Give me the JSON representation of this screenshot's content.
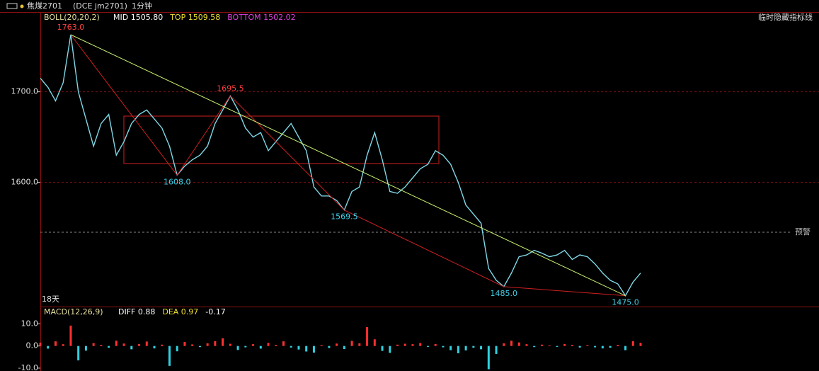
{
  "toolbar": {
    "symbol": "焦煤2701",
    "code": "(DCE jm2701)",
    "period": "1分钟"
  },
  "chart_data": [
    {
      "type": "line",
      "indicator": "BOLL(20,20,2)",
      "indicator_values": [
        "MID 1505.80",
        "TOP 1509.58",
        "BOTTOM 1502.02"
      ],
      "hide_button": "临时隐藏指标线",
      "alert_label": "预警",
      "alert_value": 1545,
      "span_label": "18天",
      "color": "#7fd8e6",
      "values": [
        1715,
        1705,
        1690,
        1710,
        1763,
        1700,
        1670,
        1640,
        1665,
        1675,
        1630,
        1645,
        1665,
        1675,
        1680,
        1670,
        1660,
        1640,
        1608,
        1618,
        1625,
        1630,
        1640,
        1665,
        1680,
        1695.5,
        1680,
        1660,
        1650,
        1655,
        1635,
        1645,
        1655,
        1665,
        1650,
        1635,
        1595,
        1585,
        1585,
        1580,
        1569.5,
        1590,
        1595,
        1630,
        1655,
        1625,
        1590,
        1588,
        1595,
        1605,
        1615,
        1620,
        1635,
        1630,
        1620,
        1600,
        1575,
        1565,
        1555,
        1505,
        1492,
        1485,
        1500,
        1518,
        1520,
        1525,
        1522,
        1518,
        1520,
        1525,
        1515,
        1520,
        1518,
        1510,
        1500,
        1492,
        1488,
        1475,
        1490,
        1500
      ],
      "value_labels": [
        null,
        null,
        null,
        null,
        "1763.0",
        null,
        null,
        null,
        null,
        null,
        null,
        null,
        null,
        null,
        null,
        null,
        null,
        null,
        "1608.0",
        null,
        null,
        null,
        null,
        null,
        null,
        "1695.5",
        null,
        null,
        null,
        null,
        null,
        null,
        null,
        null,
        null,
        null,
        null,
        null,
        null,
        null,
        "1569.5",
        null,
        null,
        null,
        null,
        null,
        null,
        null,
        null,
        null,
        null,
        null,
        null,
        null,
        null,
        null,
        null,
        null,
        null,
        null,
        null,
        "1485.0",
        null,
        null,
        null,
        null,
        null,
        null,
        null,
        null,
        null,
        null,
        null,
        null,
        null,
        null,
        null,
        "1475.0",
        null,
        null
      ],
      "ylim": [
        1463,
        1788
      ],
      "yticks": [
        {
          "value": 1700,
          "label": "1700.0"
        },
        {
          "value": 1600,
          "label": "1600.0"
        }
      ],
      "grid": true
    },
    {
      "type": "bar",
      "indicator": "MACD(12,26,9)",
      "indicator_values": [
        "DIFF 0.88",
        "DEA 0.97",
        "-0.17"
      ],
      "colors": {
        "up": "#ff3030",
        "down": "#30d0e0"
      },
      "values": [
        1.5,
        -1.2,
        2.1,
        0.8,
        9.2,
        -6.5,
        -2.1,
        1.3,
        0.5,
        -0.8,
        2.4,
        1.1,
        -1.5,
        0.9,
        2.0,
        -1.1,
        0.6,
        -9.0,
        -2.4,
        1.8,
        0.7,
        -0.5,
        1.2,
        2.2,
        3.5,
        1.0,
        -1.8,
        -0.6,
        0.8,
        -1.2,
        1.4,
        0.5,
        2.1,
        -0.7,
        -1.6,
        -2.5,
        -3.0,
        0.4,
        -0.9,
        1.1,
        -1.4,
        2.3,
        1.2,
        8.5,
        3.0,
        -2.2,
        -3.1,
        0.6,
        1.0,
        0.8,
        1.3,
        -0.4,
        0.9,
        -0.6,
        -1.9,
        -3.3,
        -2.0,
        -0.8,
        -1.5,
        -10.5,
        -3.6,
        1.2,
        2.4,
        1.6,
        0.8,
        -0.5,
        0.6,
        0.3,
        -0.4,
        0.9,
        0.5,
        -0.7,
        0.4,
        -0.6,
        -1.1,
        -0.8,
        0.5,
        -1.9,
        2.2,
        1.4
      ],
      "ylim": [
        -11.3,
        17.8
      ],
      "yticks": [
        {
          "value": 10,
          "label": "10.0"
        },
        {
          "value": 0,
          "label": "0.0"
        },
        {
          "value": -10,
          "label": "-10.0"
        }
      ]
    }
  ]
}
